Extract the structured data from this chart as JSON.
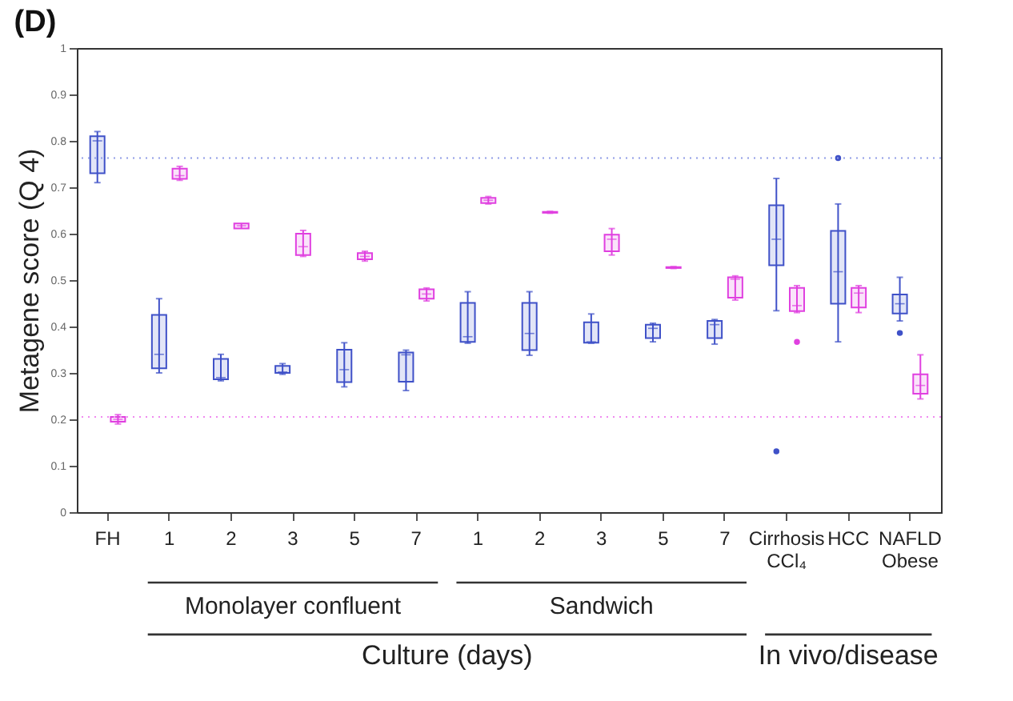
{
  "chart_data": {
    "type": "box",
    "title": "(D)",
    "ylabel": "Metagene score (Q 4)",
    "categories": [
      "FH",
      "1",
      "2",
      "3",
      "5",
      "7",
      "1",
      "2",
      "3",
      "5",
      "7",
      "Cirrhosis CCl₄",
      "HCC",
      "NAFLD Obese"
    ],
    "ylim": [
      0,
      1
    ],
    "yticks": [
      0,
      0.1,
      0.2,
      0.3,
      0.4,
      0.5,
      0.6,
      0.7,
      0.8,
      0.9,
      1
    ],
    "grid": false,
    "series": [
      {
        "color": "#3f51c8",
        "boxes": [
          {
            "low": 0.71,
            "q1": 0.73,
            "median": 0.8,
            "q3": 0.81,
            "high": 0.82
          },
          {
            "low": 0.3,
            "q1": 0.31,
            "median": 0.34,
            "q3": 0.425,
            "high": 0.46
          },
          {
            "low": 0.283,
            "q1": 0.286,
            "median": 0.29,
            "q3": 0.33,
            "high": 0.34
          },
          {
            "low": 0.297,
            "q1": 0.3,
            "median": 0.302,
            "q3": 0.315,
            "high": 0.32
          },
          {
            "low": 0.27,
            "q1": 0.28,
            "median": 0.307,
            "q3": 0.35,
            "high": 0.365
          },
          {
            "low": 0.262,
            "q1": 0.281,
            "median": 0.339,
            "q3": 0.344,
            "high": 0.349
          },
          {
            "low": 0.364,
            "q1": 0.367,
            "median": 0.378,
            "q3": 0.451,
            "high": 0.475
          },
          {
            "low": 0.338,
            "q1": 0.349,
            "median": 0.385,
            "q3": 0.451,
            "high": 0.475
          },
          {
            "low": 0.364,
            "q1": 0.365,
            "median": 0.367,
            "q3": 0.409,
            "high": 0.427
          },
          {
            "low": 0.367,
            "q1": 0.375,
            "median": 0.396,
            "q3": 0.404,
            "high": 0.407
          },
          {
            "low": 0.362,
            "q1": 0.375,
            "median": 0.404,
            "q3": 0.412,
            "high": 0.415
          },
          {
            "low": 0.434,
            "q1": 0.532,
            "median": 0.588,
            "q3": 0.661,
            "high": 0.719,
            "outliers": [
              0.131
            ]
          },
          {
            "low": 0.367,
            "q1": 0.449,
            "median": 0.518,
            "q3": 0.606,
            "high": 0.664,
            "outliers": [
              0.763
            ]
          },
          {
            "low": 0.412,
            "q1": 0.428,
            "median": 0.449,
            "q3": 0.469,
            "high": 0.506,
            "outliers": [
              0.386
            ]
          }
        ]
      },
      {
        "color": "#e040e0",
        "boxes": [
          {
            "low": 0.19,
            "q1": 0.195,
            "median": 0.2,
            "q3": 0.205,
            "high": 0.21
          },
          {
            "low": 0.715,
            "q1": 0.718,
            "median": 0.725,
            "q3": 0.74,
            "high": 0.745
          },
          {
            "low": 0.611,
            "q1": 0.611,
            "median": 0.617,
            "q3": 0.622,
            "high": 0.622
          },
          {
            "low": 0.551,
            "q1": 0.554,
            "median": 0.572,
            "q3": 0.6,
            "high": 0.607
          },
          {
            "low": 0.541,
            "q1": 0.545,
            "median": 0.551,
            "q3": 0.558,
            "high": 0.562
          },
          {
            "low": 0.455,
            "q1": 0.46,
            "median": 0.47,
            "q3": 0.48,
            "high": 0.483
          },
          {
            "low": 0.664,
            "q1": 0.666,
            "median": 0.672,
            "q3": 0.677,
            "high": 0.68
          },
          {
            "low": 0.644,
            "q1": 0.645,
            "median": 0.646,
            "q3": 0.647,
            "high": 0.648
          },
          {
            "low": 0.554,
            "q1": 0.562,
            "median": 0.588,
            "q3": 0.598,
            "high": 0.611
          },
          {
            "low": 0.525,
            "q1": 0.526,
            "median": 0.527,
            "q3": 0.528,
            "high": 0.529
          },
          {
            "low": 0.457,
            "q1": 0.462,
            "median": 0.502,
            "q3": 0.506,
            "high": 0.509
          },
          {
            "low": 0.43,
            "q1": 0.433,
            "median": 0.445,
            "q3": 0.483,
            "high": 0.488,
            "outliers": [
              0.367
            ]
          },
          {
            "low": 0.43,
            "q1": 0.441,
            "median": 0.472,
            "q3": 0.483,
            "high": 0.488
          },
          {
            "low": 0.244,
            "q1": 0.255,
            "median": 0.273,
            "q3": 0.297,
            "high": 0.339
          }
        ]
      }
    ],
    "ref_lines": [
      {
        "axis": "y",
        "value": 0.763,
        "color": "#8f9ce6",
        "line_style": "dotted"
      },
      {
        "axis": "y",
        "value": 0.205,
        "color": "#f08af0",
        "line_style": "dotted"
      }
    ],
    "annotations": [
      "Monolayer confluent",
      "Sandwich",
      "Culture (days)",
      "In vivo/disease"
    ]
  }
}
